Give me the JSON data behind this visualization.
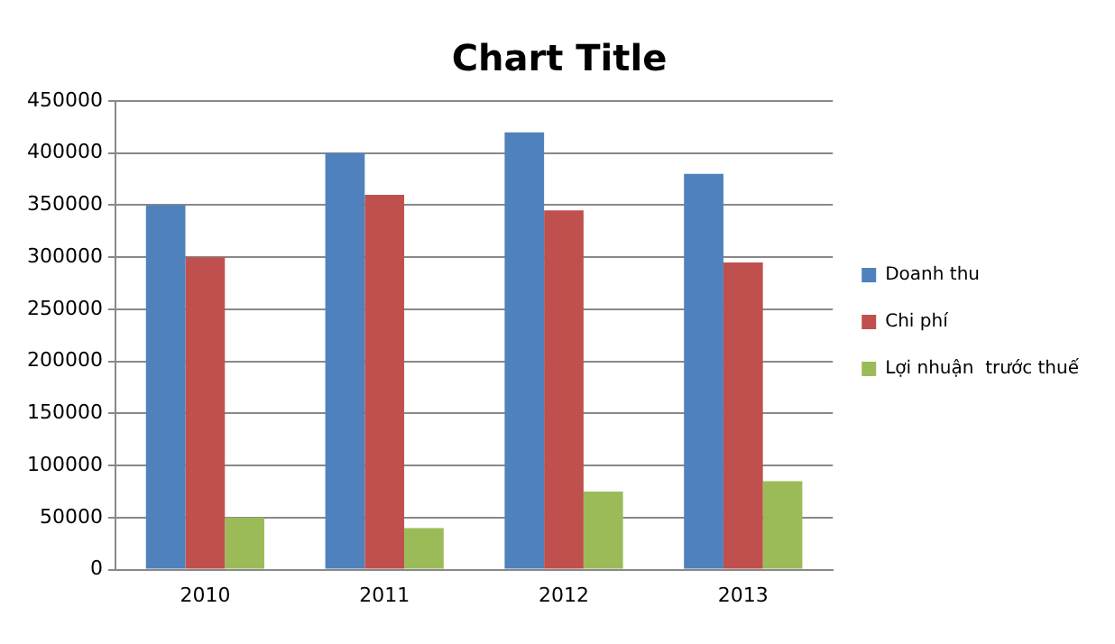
{
  "chart_data": {
    "type": "bar",
    "title": "Chart Title",
    "categories": [
      "2010",
      "2011",
      "2012",
      "2013"
    ],
    "series": [
      {
        "name": "Doanh thu",
        "color": "#4f81bd",
        "values": [
          350000,
          400000,
          420000,
          380000
        ]
      },
      {
        "name": "Chi phí",
        "color": "#c0504d",
        "values": [
          300000,
          360000,
          345000,
          295000
        ]
      },
      {
        "name": "Lợi nhuận  trước thuế",
        "color": "#9bbb59",
        "values": [
          50000,
          40000,
          75000,
          85000
        ]
      }
    ],
    "ylim": [
      0,
      450000
    ],
    "yticks": [
      0,
      50000,
      100000,
      150000,
      200000,
      250000,
      300000,
      350000,
      400000,
      450000
    ],
    "grid": "y",
    "legend": "right"
  }
}
